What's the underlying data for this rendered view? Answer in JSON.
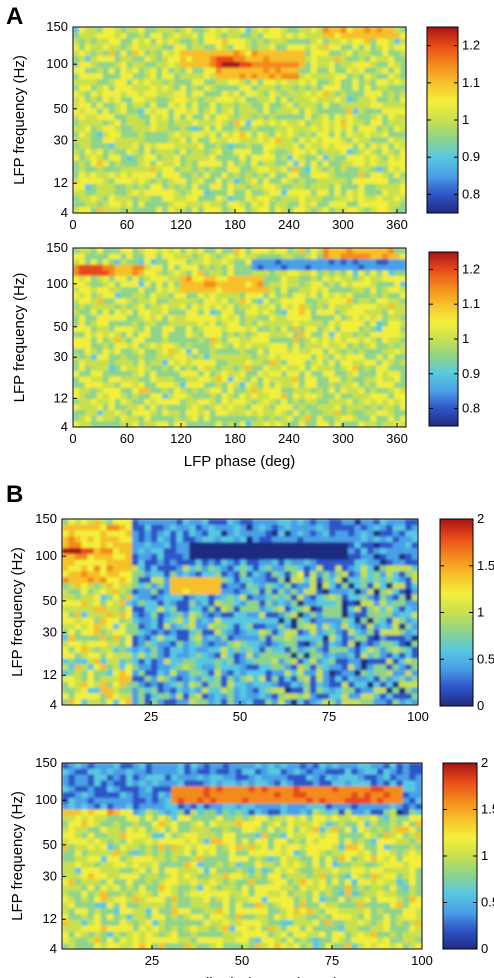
{
  "panel_letters": [
    "A",
    "B"
  ],
  "colormap": [
    "#1f2a80",
    "#2f55c8",
    "#4aa0e6",
    "#59c8e0",
    "#8ed48a",
    "#c8e050",
    "#f3ef3a",
    "#f7c02a",
    "#f38a1e",
    "#e84a1a",
    "#a51414"
  ],
  "chart_data": [
    {
      "type": "heatmap",
      "panel": "A-top",
      "x_ticks": [
        "0",
        "60",
        "120",
        "180",
        "240",
        "300",
        "360"
      ],
      "xlim": [
        0,
        370
      ],
      "y_ticks": [
        "4",
        "12",
        "30",
        "50",
        "100",
        "150"
      ],
      "ylabel": "LFP frequency (Hz)",
      "xlabel": "",
      "colorbar": {
        "ticks": [
          "0.8",
          "0.9",
          "1",
          "1.1",
          "1.2"
        ],
        "range": [
          0.75,
          1.25
        ]
      },
      "features": [
        {
          "kind": "band",
          "y_hz": 80,
          "x_from": 120,
          "x_to": 260,
          "value": 1.12
        },
        {
          "kind": "band",
          "y_hz": 65,
          "x_from": 160,
          "x_to": 250,
          "value": 1.15
        },
        {
          "kind": "hotspot",
          "x": 175,
          "y_hz": 75,
          "value": 1.25
        },
        {
          "kind": "hotspot",
          "x": 340,
          "y_hz": 145,
          "value": 1.2
        },
        {
          "kind": "band",
          "y_hz": 145,
          "x_from": 280,
          "x_to": 360,
          "value": 1.12
        }
      ]
    },
    {
      "type": "heatmap",
      "panel": "A-bottom",
      "x_ticks": [
        "0",
        "60",
        "120",
        "180",
        "240",
        "300",
        "360"
      ],
      "xlim": [
        0,
        370
      ],
      "y_ticks": [
        "4",
        "12",
        "30",
        "50",
        "100",
        "150"
      ],
      "ylabel": "LFP frequency (Hz)",
      "xlabel": "LFP phase (deg)",
      "colorbar": {
        "ticks": [
          "0.8",
          "0.9",
          "1",
          "1.1",
          "1.2"
        ],
        "range": [
          0.75,
          1.25
        ]
      },
      "features": [
        {
          "kind": "band",
          "y_hz": 95,
          "x_from": 0,
          "x_to": 80,
          "value": 1.15
        },
        {
          "kind": "band",
          "y_hz": 70,
          "x_from": 120,
          "x_to": 210,
          "value": 1.12
        },
        {
          "kind": "band",
          "y_hz": 105,
          "x_from": 200,
          "x_to": 370,
          "value": 0.8
        },
        {
          "kind": "band",
          "y_hz": 145,
          "x_from": 280,
          "x_to": 360,
          "value": 1.15
        },
        {
          "kind": "hotspot",
          "x": 20,
          "y_hz": 95,
          "value": 1.25
        }
      ]
    },
    {
      "type": "heatmap",
      "panel": "B-top",
      "x_ticks": [
        "25",
        "50",
        "75",
        "100"
      ],
      "xlim": [
        0,
        100
      ],
      "y_ticks": [
        "4",
        "12",
        "30",
        "50",
        "100",
        "150"
      ],
      "ylabel": "LFP frequency (Hz)",
      "xlabel": "",
      "colorbar": {
        "ticks": [
          "0",
          "0.5",
          "1",
          "1.5",
          "2"
        ],
        "range": [
          0,
          2
        ]
      },
      "features": [
        {
          "kind": "hotspot",
          "x": 3,
          "y_hz": 80,
          "value": 2.0
        },
        {
          "kind": "band",
          "y_hz": 80,
          "x_from": 35,
          "x_to": 80,
          "value": 0.0
        },
        {
          "kind": "band",
          "y_hz": 40,
          "x_from": 30,
          "x_to": 45,
          "value": 1.6
        }
      ]
    },
    {
      "type": "heatmap",
      "panel": "B-bottom",
      "x_ticks": [
        "25",
        "50",
        "75",
        "100"
      ],
      "xlim": [
        0,
        100
      ],
      "y_ticks": [
        "4",
        "12",
        "30",
        "50",
        "100",
        "150"
      ],
      "ylabel": "LFP frequency (Hz)",
      "xlabel": "LFP amplitude (% maximum)",
      "colorbar": {
        "ticks": [
          "0",
          "0.5",
          "1",
          "1.5",
          "2"
        ],
        "range": [
          0,
          2
        ]
      },
      "features": [
        {
          "kind": "band",
          "y_hz": 80,
          "x_from": 30,
          "x_to": 95,
          "value": 2.0
        }
      ]
    }
  ]
}
